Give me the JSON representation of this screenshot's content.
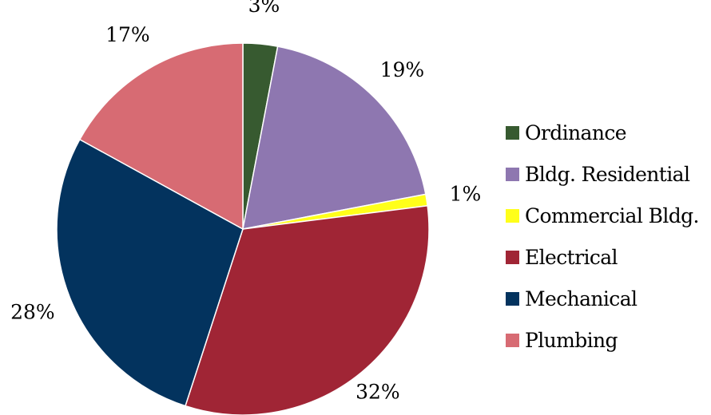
{
  "chart_data": {
    "type": "pie",
    "title": "",
    "legend_position": "right",
    "slices": [
      {
        "name": "Ordinance",
        "value": 3,
        "label": "3%",
        "color": "#375a30"
      },
      {
        "name": "Bldg. Residential",
        "value": 19,
        "label": "19%",
        "color": "#8e77b0"
      },
      {
        "name": "Commercial Bldg.",
        "value": 1,
        "label": "1%",
        "color": "#ffff1a"
      },
      {
        "name": "Electrical",
        "value": 32,
        "label": "32%",
        "color": "#a02535"
      },
      {
        "name": "Mechanical",
        "value": 28,
        "label": "28%",
        "color": "#03335e"
      },
      {
        "name": "Plumbing",
        "value": 17,
        "label": "17%",
        "color": "#d76b73"
      }
    ]
  }
}
